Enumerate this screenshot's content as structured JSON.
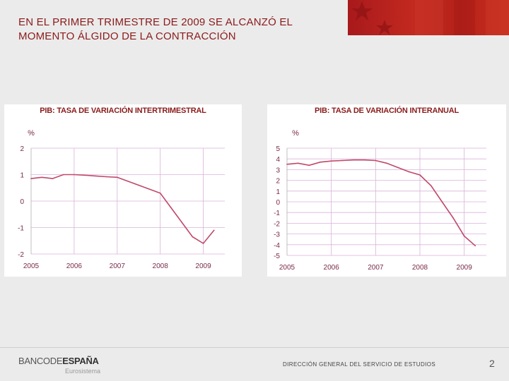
{
  "slide": {
    "title_line1": "EN EL PRIMER TRIMESTRE DE 2009 SE ALCANZÓ EL",
    "title_line2": "MOMENTO ÁLGIDO DE LA CONTRACCIÓN",
    "footer_text": "DIRECCIÓN GENERAL DEL SERVICIO DE ESTUDIOS",
    "page_number": "2",
    "logo_part1": "BANCODE",
    "logo_part2": "ESPAÑA",
    "logo_sub": "Eurosistema"
  },
  "colors": {
    "accent": "#8b1a1a",
    "line": "#c0486a",
    "grid": "#d9b3d9",
    "banner": "#b52119"
  },
  "chart_data": [
    {
      "type": "line",
      "title": "PIB: TASA DE VARIACIÓN INTERTRIMESTRAL",
      "ylabel": "%",
      "ylim": [
        -2,
        2
      ],
      "yticks": [
        2,
        1,
        0,
        -1,
        -2
      ],
      "xlim": [
        2005.0,
        2009.5
      ],
      "xticks": [
        "2005",
        "2006",
        "2007",
        "2008",
        "2009"
      ],
      "grid": true,
      "x": [
        2005.0,
        2005.25,
        2005.5,
        2005.75,
        2006.0,
        2006.25,
        2006.5,
        2006.75,
        2007.0,
        2007.25,
        2007.5,
        2007.75,
        2008.0,
        2008.25,
        2008.5,
        2008.75,
        2009.0,
        2009.25
      ],
      "values": [
        0.85,
        0.9,
        0.85,
        1.0,
        1.0,
        0.98,
        0.95,
        0.92,
        0.9,
        0.75,
        0.6,
        0.45,
        0.3,
        -0.25,
        -0.8,
        -1.35,
        -1.6,
        -1.1
      ]
    },
    {
      "type": "line",
      "title": "PIB: TASA DE VARIACIÓN INTERANUAL",
      "ylabel": "%",
      "ylim": [
        -5,
        5
      ],
      "yticks": [
        5,
        4,
        3,
        2,
        1,
        0,
        -1,
        -2,
        -3,
        -4,
        -5
      ],
      "xlim": [
        2005.0,
        2009.5
      ],
      "xticks": [
        "2005",
        "2006",
        "2007",
        "2008",
        "2009"
      ],
      "grid": true,
      "x": [
        2005.0,
        2005.25,
        2005.5,
        2005.75,
        2006.0,
        2006.25,
        2006.5,
        2006.75,
        2007.0,
        2007.25,
        2007.5,
        2007.75,
        2008.0,
        2008.25,
        2008.5,
        2008.75,
        2009.0,
        2009.25
      ],
      "values": [
        3.5,
        3.6,
        3.4,
        3.7,
        3.8,
        3.85,
        3.9,
        3.9,
        3.85,
        3.6,
        3.2,
        2.8,
        2.5,
        1.5,
        0.0,
        -1.5,
        -3.2,
        -4.1
      ]
    }
  ]
}
